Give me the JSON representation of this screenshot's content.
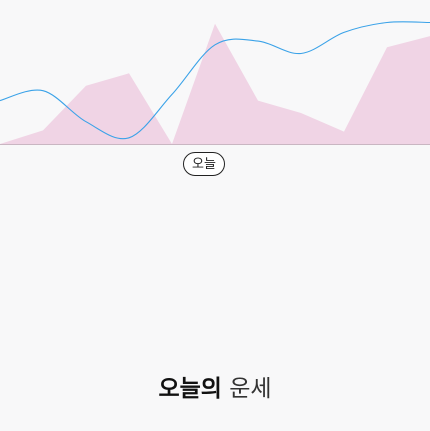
{
  "colors": {
    "background": "#f8f8f9",
    "area_fill": "#f0d4e5",
    "curve_stroke": "#3aa2e8",
    "baseline": "#c9b6c2",
    "text": "#111111"
  },
  "badge": {
    "label": "오늘"
  },
  "title": {
    "bold": "오늘의",
    "light": "운세"
  },
  "chart_data": {
    "type": "area",
    "series": [
      {
        "type": "area",
        "x": [
          0,
          1,
          2,
          3,
          4,
          5,
          6,
          7,
          8,
          9,
          10
        ],
        "values": [
          0.0,
          0.11,
          0.47,
          0.57,
          0.0,
          0.97,
          0.35,
          0.25,
          0.1,
          0.78,
          0.87
        ],
        "color": "#f0d4e5"
      },
      {
        "type": "line",
        "x": [
          0,
          1,
          2,
          3,
          4,
          5,
          6,
          7,
          8,
          9,
          10
        ],
        "values": [
          0.35,
          0.43,
          0.18,
          0.05,
          0.4,
          0.8,
          0.83,
          0.73,
          0.9,
          0.98,
          0.98
        ],
        "color": "#3aa2e8"
      }
    ],
    "ylim": [
      0,
      1
    ],
    "grid": false,
    "legend": "none"
  }
}
